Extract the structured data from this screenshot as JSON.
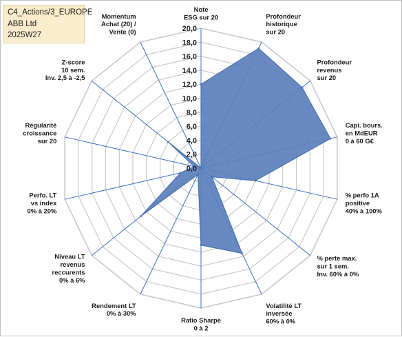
{
  "header": {
    "line1": "C4_Actions/3_EUROPE",
    "line2": "ABB Ltd",
    "line3": "2025W27"
  },
  "chart_data": {
    "type": "radar",
    "title": "",
    "rmax": 20,
    "rticks": [
      "0,0",
      "2,0",
      "4,0",
      "6,0",
      "8,0",
      "10,0",
      "12,0",
      "14,0",
      "16,0",
      "18,0",
      "20,0"
    ],
    "axes": [
      [
        "Note",
        "ESG sur 20"
      ],
      [
        "Profondeur",
        "historique",
        "sur 20"
      ],
      [
        "Profondeur",
        "revenus",
        "sur 20"
      ],
      [
        "Capi. bours.",
        "en MdEUR",
        "0 à 60 G€"
      ],
      [
        "% perfo 1A",
        "positive",
        "40% à 100%"
      ],
      [
        "% perte max.",
        "sur 1 sem.",
        "Inv. 60% à 0%"
      ],
      [
        "Volatilité LT",
        "inversée",
        "60% à 0%"
      ],
      [
        "Ratio Sharpe",
        "0 à 2"
      ],
      [
        "Rendement LT",
        "0% à 30%"
      ],
      [
        "Niveau LT",
        "revenus",
        "reccurents",
        "0% à 6%"
      ],
      [
        "Perfo. LT",
        "vs index",
        "0% à 20%"
      ],
      [
        "Régularité",
        "croissance",
        "sur 20"
      ],
      [
        "Z-score",
        "10 sem.",
        "Inv. 2,5 à -2,5"
      ],
      [
        "Momentum",
        "Achat (20) /",
        "Vente (0)"
      ]
    ],
    "series": [
      {
        "name": "",
        "values": [
          12,
          19,
          18.5,
          19,
          8,
          2,
          13.5,
          11,
          1,
          11,
          3,
          1,
          6,
          0
        ],
        "fill": "#5b80bb",
        "stroke": "#4a71b0"
      }
    ],
    "grid_color": "#c8c8c8",
    "spoke_color": "#3a6fc8"
  }
}
